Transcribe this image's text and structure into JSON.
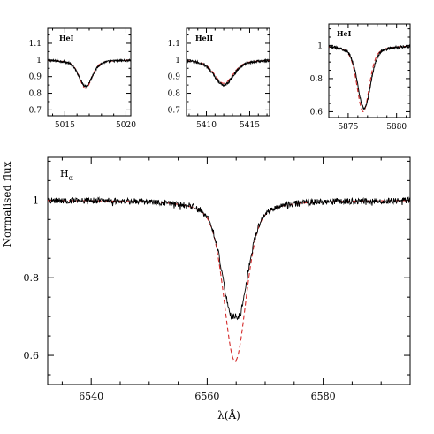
{
  "chart_data": [
    {
      "type": "line",
      "label": "HeI",
      "xlim": [
        5013.6,
        5020.4
      ],
      "ylim": [
        0.665,
        1.19
      ],
      "xticks": [
        5015,
        5020
      ],
      "xtick_labels": [
        "5015",
        "5020"
      ],
      "yticks": [
        0.7,
        0.8,
        0.9,
        1.0,
        1.1
      ],
      "ytick_labels": [
        "0.7",
        "0.8",
        "0.9",
        "1",
        "1.1"
      ],
      "series": [
        {
          "style": "observed",
          "color": "#000000",
          "center": 5016.7,
          "depth": 0.155,
          "width": 0.55,
          "noise": 0.006
        },
        {
          "style": "model",
          "color": "#d42a2a",
          "center": 5016.7,
          "depth": 0.17,
          "width": 0.5
        }
      ]
    },
    {
      "type": "line",
      "label": "HeII",
      "xlim": [
        5407.7,
        5417.3
      ],
      "ylim": [
        0.665,
        1.19
      ],
      "xticks": [
        5410,
        5415
      ],
      "xtick_labels": [
        "5410",
        "5415"
      ],
      "yticks": [
        0.7,
        0.8,
        0.9,
        1.0,
        1.1
      ],
      "ytick_labels": [
        "0.7",
        "0.8",
        "0.9",
        "1",
        "1.1"
      ],
      "series": [
        {
          "style": "observed",
          "color": "#000000",
          "center": 5412.0,
          "depth": 0.15,
          "width": 1.1,
          "noise": 0.007
        },
        {
          "style": "model",
          "color": "#d42a2a",
          "center": 5412.0,
          "depth": 0.14,
          "width": 1.05
        }
      ]
    },
    {
      "type": "line",
      "label": "HeI",
      "xlim": [
        5873.0,
        5881.4
      ],
      "ylim": [
        0.565,
        1.13
      ],
      "xticks": [
        5875,
        5880
      ],
      "xtick_labels": [
        "5875",
        "5880"
      ],
      "yticks": [
        0.6,
        0.8,
        1.0
      ],
      "ytick_labels": [
        "0.6",
        "0.8",
        "1"
      ],
      "series": [
        {
          "style": "observed",
          "color": "#000000",
          "center": 5876.65,
          "depth": 0.38,
          "width": 0.65,
          "noise": 0.008
        },
        {
          "style": "model",
          "color": "#d42a2a",
          "center": 5876.55,
          "depth": 0.4,
          "width": 0.62
        }
      ]
    },
    {
      "type": "line",
      "label": "H",
      "label_sub": "α",
      "xlabel": "λ(Å)",
      "ylabel": "Normalised flux",
      "xlim": [
        6532.5,
        6595
      ],
      "ylim": [
        0.525,
        1.11
      ],
      "xticks": [
        6540,
        6560,
        6580
      ],
      "xtick_labels": [
        "6540",
        "6560",
        "6580"
      ],
      "yticks": [
        0.6,
        0.8,
        1.0
      ],
      "ytick_labels": [
        "0.6",
        "0.8",
        "1"
      ],
      "series": [
        {
          "style": "observed",
          "color": "#000000",
          "center": 6564.8,
          "depth": 0.33,
          "width": 2.0,
          "core_emission": true,
          "noise": 0.008
        },
        {
          "style": "model",
          "color": "#d42a2a",
          "center": 6564.8,
          "depth": 0.415,
          "width": 1.85
        }
      ]
    }
  ]
}
